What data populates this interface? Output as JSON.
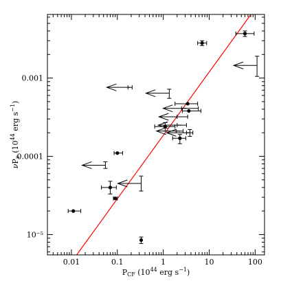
{
  "chart_data": {
    "type": "scatter",
    "title": "",
    "xlabel": "P_CF (10^44 erg s^-1)",
    "ylabel": "νP_ν (10^44 erg s^-1)",
    "xscale": "log",
    "yscale": "log",
    "xlim": [
      0.003,
      160
    ],
    "ylim": [
      5.5e-06,
      0.0065
    ],
    "x_ticks": [
      {
        "value": 0.01,
        "label": "0.01"
      },
      {
        "value": 0.1,
        "label": "0.1"
      },
      {
        "value": 1,
        "label": "1"
      },
      {
        "value": 10,
        "label": "10"
      },
      {
        "value": 100,
        "label": "100"
      }
    ],
    "y_ticks": [
      {
        "value": 1e-05,
        "label": "10⁻⁵"
      },
      {
        "value": 0.0001,
        "label": "0.0001"
      },
      {
        "value": 0.001,
        "label": "0.001"
      }
    ],
    "grid": false,
    "colors": {
      "points": "#000000",
      "fit_line": "#ff0000"
    },
    "fit_line": {
      "x": [
        0.013,
        81
      ],
      "y": [
        5.5e-06,
        0.0065
      ]
    },
    "detections": [
      {
        "x": 0.011,
        "y": 2e-05,
        "x_err": [
          0.0085,
          0.016
        ]
      },
      {
        "x": 0.07,
        "y": 4e-05,
        "x_err": [
          0.045,
          0.095
        ],
        "y_err": [
          3.3e-05,
          4.8e-05
        ]
      },
      {
        "x": 0.09,
        "y": 2.9e-05,
        "x_err": [
          0.082,
          0.1
        ]
      },
      {
        "x": 0.1,
        "y": 0.00011,
        "x_err": [
          0.085,
          0.13
        ]
      },
      {
        "x": 0.33,
        "y": 8.5e-06,
        "y_err": [
          7.7e-06,
          9.3e-06
        ]
      },
      {
        "x": 1.1,
        "y": 0.00024,
        "x_err": [
          0.65,
          1.8
        ],
        "y_err": [
          0.00021,
          0.00027
        ]
      },
      {
        "x": 2.3,
        "y": 0.00017,
        "x_err": [
          1.6,
          3.1
        ],
        "y_err": [
          0.000145,
          0.00019
        ]
      },
      {
        "x": 3.4,
        "y": 0.00047,
        "x_err": [
          1.8,
          5.6
        ]
      },
      {
        "x": 3.6,
        "y": 0.00038,
        "x_err": [
          2.6,
          6.6
        ]
      },
      {
        "x": 7,
        "y": 0.0028,
        "x_err": [
          5.6,
          8.8
        ],
        "y_err": [
          0.0026,
          0.003
        ]
      },
      {
        "x": 60,
        "y": 0.0037,
        "x_err": [
          38,
          95
        ],
        "y_err": [
          0.0034,
          0.004
        ]
      }
    ],
    "upper_limits": [
      {
        "x": 0.19,
        "y": 0.00076,
        "x_err": [
          0.17,
          0.21
        ]
      },
      {
        "x": 0.055,
        "y": 7.7e-05,
        "y_err": [
          7e-05,
          8.5e-05
        ]
      },
      {
        "x": 0.33,
        "y": 4.5e-05,
        "y_err": [
          3.6e-05,
          5.6e-05
        ]
      },
      {
        "x": 1.35,
        "y": 0.00064,
        "y_err": [
          0.00055,
          0.00072
        ]
      },
      {
        "x": 3.2,
        "y": 0.00041,
        "x_err": [
          2.5,
          5.8
        ]
      },
      {
        "x": 2.6,
        "y": 0.00032,
        "x_err": [
          2,
          3.4
        ]
      },
      {
        "x": 2.5,
        "y": 0.00025,
        "x_err": [
          2,
          3.2
        ]
      },
      {
        "x": 2.3,
        "y": 0.00021,
        "x_err": [
          1.9,
          2.7
        ]
      },
      {
        "x": 3.8,
        "y": 0.0002,
        "x_err": [
          3.2,
          4.4
        ],
        "y_err": [
          0.00018,
          0.00022
        ]
      },
      {
        "x": 110,
        "y": 0.00145,
        "y_err": [
          0.00105,
          0.0019
        ]
      }
    ]
  }
}
